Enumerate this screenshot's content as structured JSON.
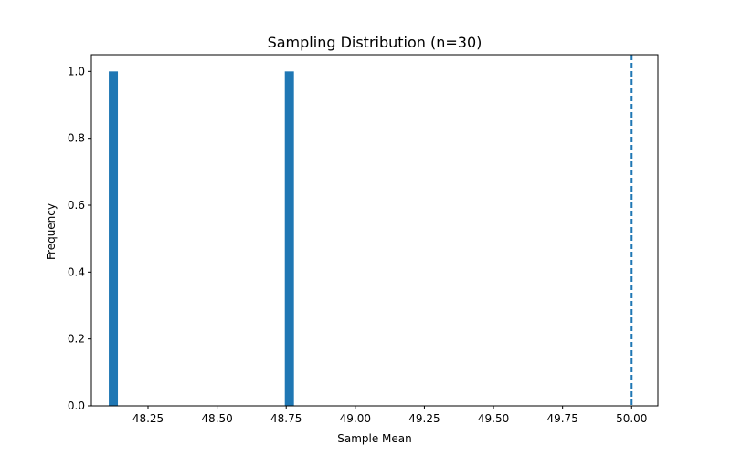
{
  "chart_data": {
    "type": "bar",
    "title": "Sampling Distribution (n=30)",
    "xlabel": "Sample Mean",
    "ylabel": "Frequency",
    "xlim": [
      48.045,
      50.095
    ],
    "ylim": [
      0,
      1.05
    ],
    "x_ticks": [
      48.25,
      48.5,
      48.75,
      49.0,
      49.25,
      49.5,
      49.75,
      50.0
    ],
    "x_tick_labels": [
      "48.25",
      "48.50",
      "48.75",
      "49.00",
      "49.25",
      "49.50",
      "49.75",
      "50.00"
    ],
    "y_ticks": [
      0.0,
      0.2,
      0.4,
      0.6,
      0.8,
      1.0
    ],
    "y_tick_labels": [
      "0.0",
      "0.2",
      "0.4",
      "0.6",
      "0.8",
      "1.0"
    ],
    "bars": [
      {
        "x_start": 48.108,
        "x_end": 48.141,
        "value": 1
      },
      {
        "x_start": 48.745,
        "x_end": 48.778,
        "value": 1
      }
    ],
    "reference_line": {
      "x": 50.0,
      "style": "dashed"
    },
    "grid": false,
    "colors": {
      "bar": "#1f77b4",
      "reference_line": "#1f77b4",
      "axes": "#000000"
    }
  }
}
